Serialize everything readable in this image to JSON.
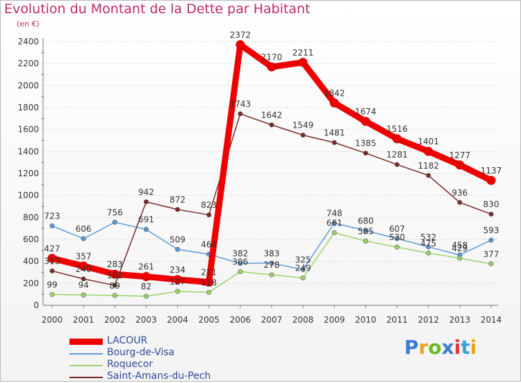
{
  "title": "Evolution du Montant de la Dette par Habitant",
  "unit": "(en €)",
  "logo": {
    "text": "Proxiti",
    "colors": [
      "#3a7bd5",
      "#f0a020",
      "#6aba2a",
      "#3a7bd5",
      "#e03a3a",
      "#3aa0d5",
      "#f0a020"
    ]
  },
  "chart_data": {
    "type": "line",
    "x": [
      "2000",
      "2001",
      "2002",
      "2003",
      "2004",
      "2005",
      "2006",
      "2007",
      "2008",
      "2009",
      "2010",
      "2011",
      "2012",
      "2013",
      "2014"
    ],
    "ylim": [
      0,
      2400
    ],
    "yticks": [
      "0",
      "200",
      "400",
      "600",
      "800",
      "1000",
      "1200",
      "1400",
      "1600",
      "1800",
      "2000",
      "2200",
      "2400"
    ],
    "grid": "horizontal",
    "legend_position": "bottom-left",
    "series": [
      {
        "name": "LACOUR",
        "color": "#ee0000",
        "values": [
          427,
          357,
          283,
          261,
          234,
          211,
          2372,
          2170,
          2211,
          1842,
          1674,
          1516,
          1401,
          1277,
          1137
        ],
        "labels": [
          "427",
          "357",
          "283",
          "261",
          "234",
          "211",
          "2372",
          "2170",
          "2211",
          "1842",
          "1674",
          "1516",
          "1401",
          "1277",
          "1137"
        ]
      },
      {
        "name": "Bourg-de-Visa",
        "color": "#5b9bd5",
        "values": [
          723,
          606,
          756,
          691,
          509,
          464,
          382,
          383,
          325,
          748,
          680,
          607,
          532,
          458,
          593
        ],
        "labels": [
          "723",
          "606",
          "756",
          "691",
          "509",
          "464",
          "382",
          "383",
          "325",
          "748",
          "680",
          "607",
          "532",
          "458",
          "593"
        ]
      },
      {
        "name": "Roquecor",
        "color": "#9bd46a",
        "values": [
          99,
          94,
          89,
          82,
          127,
          118,
          306,
          278,
          249,
          661,
          585,
          530,
          475,
          429,
          377
        ],
        "labels": [
          "99",
          "94",
          "89",
          "82",
          "127",
          "118",
          "306",
          "278",
          "249",
          "661",
          "585",
          "530",
          "475",
          "429",
          "377"
        ]
      },
      {
        "name": "Saint-Amans-du-Pech",
        "color": "#7a2a2a",
        "values": [
          313,
          240,
          182,
          942,
          872,
          823,
          1743,
          1642,
          1549,
          1481,
          1385,
          1281,
          1182,
          936,
          830
        ],
        "labels": [
          "313",
          "240",
          "182",
          "942",
          "872",
          "823",
          "1743",
          "1642",
          "1549",
          "1481",
          "1385",
          "1281",
          "1182",
          "936",
          "830"
        ]
      }
    ]
  }
}
